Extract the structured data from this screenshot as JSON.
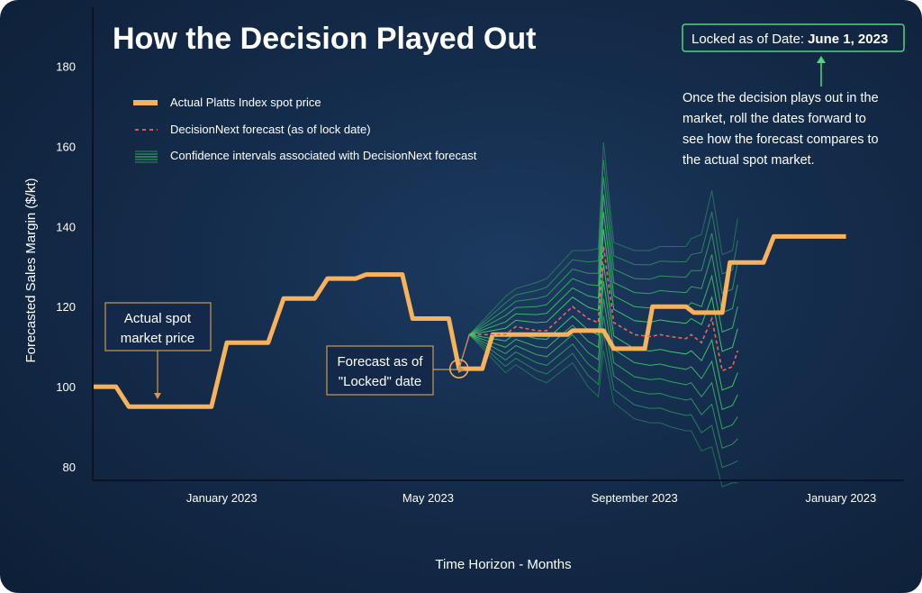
{
  "chart_data": {
    "type": "line",
    "title": "How the Decision Played Out",
    "xlabel": "Time Horizon - Months",
    "ylabel": "Forecasted Sales Margin ($/kt)",
    "ylim": [
      78,
      190
    ],
    "yticks": [
      80,
      100,
      120,
      140,
      160,
      180
    ],
    "xticks": [
      {
        "label": "January 2023",
        "x": 2.5
      },
      {
        "label": "May 2023",
        "x": 6.5
      },
      {
        "label": "September 2023",
        "x": 10.5
      },
      {
        "label": "January 2023",
        "x": 14.5
      }
    ],
    "legend": [
      {
        "label": "Actual Platts Index spot price",
        "kind": "actual"
      },
      {
        "label": "DecisionNext forecast (as of lock date)",
        "kind": "forecast"
      },
      {
        "label": "Confidence intervals associated with DecisionNext forecast",
        "kind": "ci"
      }
    ],
    "series": [
      {
        "name": "Actual Platts Index spot price",
        "points": [
          [
            0,
            100
          ],
          [
            0.45,
            100
          ],
          [
            0.7,
            95
          ],
          [
            2.3,
            95
          ],
          [
            2.6,
            111
          ],
          [
            3.4,
            111
          ],
          [
            3.7,
            122
          ],
          [
            4.3,
            122
          ],
          [
            4.55,
            127
          ],
          [
            5.1,
            127
          ],
          [
            5.3,
            128
          ],
          [
            6.0,
            128
          ],
          [
            6.2,
            117
          ],
          [
            6.9,
            117
          ],
          [
            7.1,
            104.5
          ],
          [
            7.55,
            104.5
          ],
          [
            7.75,
            113
          ],
          [
            9.2,
            113
          ],
          [
            9.3,
            114
          ],
          [
            9.9,
            114
          ],
          [
            10.1,
            109.5
          ],
          [
            10.7,
            109.5
          ],
          [
            10.85,
            120
          ],
          [
            11.5,
            120
          ],
          [
            11.65,
            118.5
          ],
          [
            12.2,
            118.5
          ],
          [
            12.35,
            131
          ],
          [
            13.0,
            131
          ],
          [
            13.2,
            137.5
          ],
          [
            14.6,
            137.5
          ]
        ]
      },
      {
        "name": "DecisionNext forecast (as of lock date)",
        "points": [
          [
            7.1,
            104.5
          ],
          [
            7.3,
            113
          ],
          [
            8.0,
            113
          ],
          [
            8.2,
            115
          ],
          [
            8.6,
            114
          ],
          [
            8.8,
            114
          ],
          [
            9.3,
            120
          ],
          [
            9.6,
            117
          ],
          [
            9.8,
            116
          ],
          [
            9.9,
            135
          ],
          [
            10.1,
            116
          ],
          [
            10.5,
            113
          ],
          [
            10.8,
            112.5
          ],
          [
            11.0,
            113
          ],
          [
            11.2,
            112.5
          ],
          [
            11.5,
            112
          ],
          [
            11.6,
            113
          ],
          [
            11.8,
            111
          ],
          [
            12.0,
            117
          ],
          [
            12.2,
            104
          ],
          [
            12.4,
            105
          ],
          [
            12.5,
            109
          ]
        ]
      }
    ],
    "confidence_intervals": {
      "name": "Confidence intervals associated with DecisionNext forecast",
      "x": [
        7.1,
        7.3,
        8.0,
        8.2,
        8.6,
        8.8,
        9.3,
        9.6,
        9.8,
        9.9,
        10.1,
        10.5,
        10.8,
        11.0,
        11.2,
        11.5,
        11.6,
        11.8,
        12.0,
        12.2,
        12.4,
        12.5
      ],
      "offsets_upper": [
        0,
        0,
        9.5,
        9.5,
        12,
        13,
        14,
        17,
        18.5,
        26,
        20,
        21,
        21.5,
        22,
        22.5,
        23,
        24,
        27,
        32,
        29,
        29,
        33
      ],
      "offsets_lower": [
        0,
        0,
        -9.5,
        -9.5,
        -12,
        -13,
        -14,
        -17,
        -18.5,
        -26,
        -20,
        -21,
        -21.5,
        -22,
        -22.5,
        -23,
        -24,
        -27,
        -32,
        -29,
        -29,
        -33
      ],
      "bands": 6
    },
    "annotations": {
      "actual_callout": [
        "Actual spot",
        "market price"
      ],
      "forecast_callout": [
        "Forecast as of",
        "\"Locked\" date"
      ],
      "lock_label": "Locked as of Date:",
      "lock_date": "June 1, 2023",
      "note_lines": [
        "Once the decision plays out in the",
        "market, roll the dates forward to",
        "see how the forecast compares to",
        "the actual spot market."
      ]
    },
    "colors": {
      "actual": "#f8b25c",
      "forecast": "#e8675b",
      "ci": "#3fcf6a",
      "ci_box": "#4fd67a",
      "callout_border": "#c99a55",
      "axis": "#0a1424"
    }
  }
}
